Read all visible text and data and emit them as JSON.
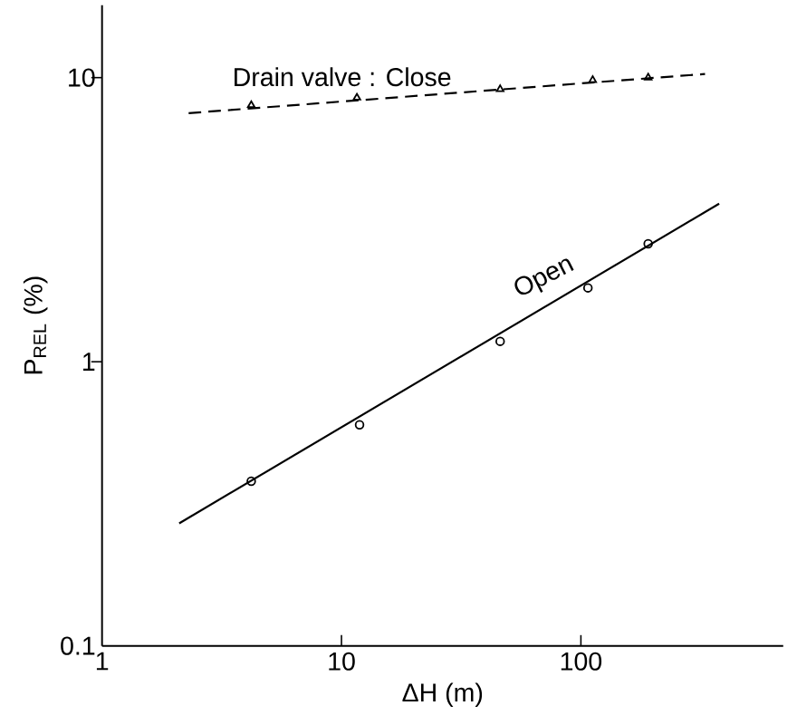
{
  "chart_data": {
    "type": "line",
    "xlabel": "ΔH (m)",
    "ylabel": "P$_{REL}$ (%)",
    "log": "xy",
    "xlim": [
      1,
      700
    ],
    "ylim": [
      0.1,
      18
    ],
    "xticks": [
      1,
      10,
      100
    ],
    "yticks": [
      0.1,
      1,
      10
    ],
    "series": [
      {
        "type": "line",
        "color": "#000000",
        "line_style": "dashed",
        "marker": "none",
        "x": [
          2.3,
          330
        ],
        "values": [
          7.5,
          10.3
        ]
      },
      {
        "type": "scatter",
        "name": "Drain valve : Close",
        "color": "#000000",
        "marker": "triangle",
        "x": [
          4.2,
          11.6,
          46,
          112,
          191
        ],
        "values": [
          8.0,
          8.5,
          9.1,
          9.8,
          10.0
        ]
      },
      {
        "type": "line",
        "color": "#000000",
        "line_style": "solid",
        "marker": "none",
        "x": [
          2.1,
          378
        ],
        "values": [
          0.27,
          3.6
        ]
      },
      {
        "type": "scatter",
        "name": "Open",
        "color": "#000000",
        "marker": "circle",
        "x": [
          4.2,
          11.9,
          46,
          107,
          191
        ],
        "values": [
          0.38,
          0.6,
          1.18,
          1.82,
          2.6
        ]
      }
    ]
  }
}
